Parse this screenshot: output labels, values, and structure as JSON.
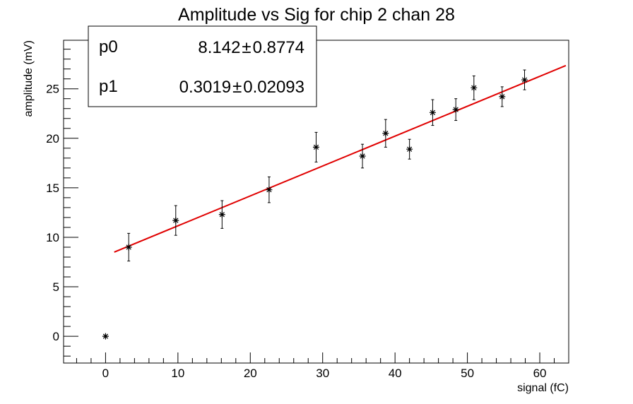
{
  "chart_data": {
    "type": "scatter",
    "title": "Amplitude vs Sig for chip 2 chan 28",
    "xlabel": "signal (fC)",
    "ylabel": "amplitude (mV)",
    "xlim": [
      -5.8,
      64
    ],
    "ylim": [
      -2.7,
      29.9
    ],
    "x_ticks": [
      0,
      10,
      20,
      30,
      40,
      50,
      60
    ],
    "x_tick_labels": [
      "0",
      "10",
      "20",
      "30",
      "40",
      "50",
      "60"
    ],
    "y_ticks": [
      0,
      5,
      10,
      15,
      20,
      25
    ],
    "y_tick_labels": [
      "0",
      "5",
      "10",
      "15",
      "20",
      "25"
    ],
    "x_minor_step": 2,
    "y_minor_step": 1,
    "grid": false,
    "series": [
      {
        "marker": "star",
        "color": "#000000",
        "points": [
          {
            "x": 0.0,
            "y": 0.0,
            "err": 0.0
          },
          {
            "x": 3.2,
            "y": 9.0,
            "err": 1.4
          },
          {
            "x": 9.7,
            "y": 11.7,
            "err": 1.5
          },
          {
            "x": 16.1,
            "y": 12.3,
            "err": 1.4
          },
          {
            "x": 22.6,
            "y": 14.8,
            "err": 1.3
          },
          {
            "x": 29.1,
            "y": 19.1,
            "err": 1.5
          },
          {
            "x": 35.5,
            "y": 18.2,
            "err": 1.2
          },
          {
            "x": 38.7,
            "y": 20.5,
            "err": 1.4
          },
          {
            "x": 42.0,
            "y": 18.9,
            "err": 1.0
          },
          {
            "x": 45.2,
            "y": 22.6,
            "err": 1.3
          },
          {
            "x": 48.4,
            "y": 22.9,
            "err": 1.1
          },
          {
            "x": 50.9,
            "y": 25.1,
            "err": 1.2
          },
          {
            "x": 54.8,
            "y": 24.2,
            "err": 1.0
          },
          {
            "x": 57.9,
            "y": 25.9,
            "err": 1.0
          }
        ]
      }
    ],
    "fit": {
      "color": "#e00000",
      "x_range": [
        1.2,
        63.6
      ],
      "p0": 8.142,
      "p1": 0.3019
    },
    "stats_box": {
      "placement": "top-left",
      "rows": [
        {
          "name": "p0",
          "value": "8.142",
          "pm": "±",
          "error": "0.8774"
        },
        {
          "name": "p1",
          "value": "0.3019",
          "pm": "±",
          "error": "0.02093"
        }
      ]
    }
  }
}
